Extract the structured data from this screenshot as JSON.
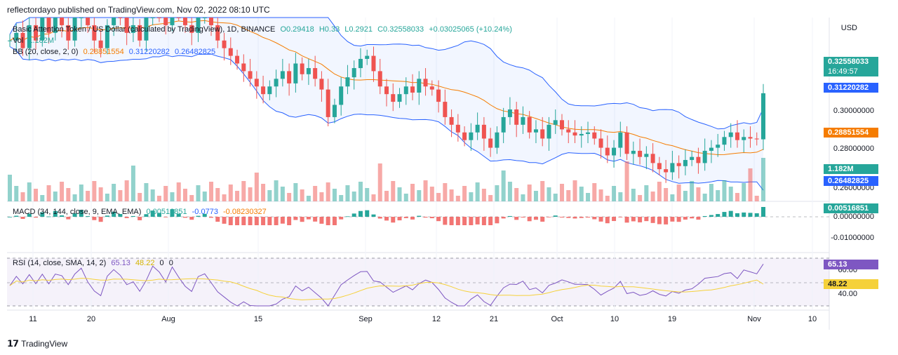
{
  "header": {
    "published": "reflectordayo published on TradingView.com, Nov 02, 2022 08:10 UTC"
  },
  "legend": {
    "symbol": "Basic Attention Token / US Dollar (calculated by TradingView), 1D, BINANCE",
    "o": "O0.29418",
    "h": "H0.33",
    "l": "L0.2921",
    "c": "C0.32558033",
    "chg": "+0.03025065 (+10.24%)",
    "vol_label": "Vol",
    "vol_val": "1.182M",
    "bb_label": "BB (20, close, 2, 0)",
    "bb_basis": "0.28851554",
    "bb_upper": "0.31220282",
    "bb_lower": "0.26482825",
    "macd_label": "MACD (34, 144, close, 9, EMA, EMA)",
    "macd_v1": "0.00516851",
    "macd_v2": "-0.0773",
    "macd_v3": "-0.08230327",
    "rsi_label": "RSI (14, close, SMA, 14, 2)",
    "rsi_v": "65.13",
    "rsi_ma": "48.22",
    "rsi_z1": "0",
    "rsi_z2": "0"
  },
  "axis": {
    "currency": "USD",
    "price_ticks": [
      "0.30000000",
      "0.28000000",
      "0.26000000"
    ],
    "macd_ticks": [
      "0.00000000",
      "-0.01000000"
    ],
    "rsi_ticks": [
      "60.00",
      "40.00"
    ],
    "x_ticks": [
      "11",
      "20",
      "Aug",
      "15",
      "Sep",
      "12",
      "21",
      "Oct",
      "10",
      "19",
      "Nov",
      "10"
    ]
  },
  "tags": {
    "last_price": "0.32558033",
    "countdown": "16:49:57",
    "bb_upper": "0.31220282",
    "bb_basis": "0.28851554",
    "volume": "1.182M",
    "bb_lower": "0.26482825",
    "macd": "0.00516851",
    "rsi": "65.13",
    "rsi_ma": "48.22"
  },
  "footer": {
    "brand": "TradingView"
  },
  "colors": {
    "up": "#26a69a",
    "down": "#ef5350",
    "bb": "#2962ff",
    "basis": "#f57c00",
    "rsi": "#7e57c2",
    "rsi_ma": "#f5d13a"
  },
  "chart_data": {
    "type": "candlestick",
    "title": "Basic Attention Token / US Dollar (calculated by TradingView), 1D, BINANCE",
    "x_ticks": [
      "11",
      "20",
      "Aug",
      "15",
      "Sep",
      "12",
      "21",
      "Oct",
      "10",
      "19",
      "Nov",
      "10"
    ],
    "y_ticks": [
      "0.30000000",
      "0.28000000",
      "0.26000000"
    ],
    "close_series": [
      0.36,
      0.365,
      0.355,
      0.37,
      0.36,
      0.375,
      0.365,
      0.38,
      0.37,
      0.36,
      0.375,
      0.385,
      0.37,
      0.36,
      0.355,
      0.37,
      0.38,
      0.375,
      0.365,
      0.37,
      0.36,
      0.375,
      0.385,
      0.38,
      0.37,
      0.39,
      0.38,
      0.37,
      0.365,
      0.375,
      0.38,
      0.37,
      0.36,
      0.355,
      0.35,
      0.345,
      0.34,
      0.335,
      0.33,
      0.325,
      0.33,
      0.335,
      0.34,
      0.332,
      0.345,
      0.338,
      0.342,
      0.335,
      0.328,
      0.31,
      0.318,
      0.33,
      0.336,
      0.342,
      0.348,
      0.35,
      0.34,
      0.33,
      0.325,
      0.32,
      0.325,
      0.33,
      0.326,
      0.335,
      0.33,
      0.328,
      0.32,
      0.31,
      0.305,
      0.3,
      0.295,
      0.3,
      0.305,
      0.296,
      0.29,
      0.3,
      0.31,
      0.315,
      0.305,
      0.31,
      0.3,
      0.302,
      0.296,
      0.305,
      0.308,
      0.302,
      0.3,
      0.298,
      0.299,
      0.3,
      0.296,
      0.29,
      0.285,
      0.29,
      0.3,
      0.286,
      0.288,
      0.284,
      0.286,
      0.28,
      0.276,
      0.274,
      0.28,
      0.278,
      0.282,
      0.284,
      0.28,
      0.288,
      0.29,
      0.292,
      0.297,
      0.3,
      0.295,
      0.297,
      0.296,
      0.2955,
      0.32558033
    ],
    "bb_upper": 0.31220282,
    "bb_basis": 0.28851554,
    "bb_lower": 0.26482825,
    "volume_last": "1.182M",
    "macd_last": 0.00516851,
    "rsi_last": 65.13,
    "rsi_ma_last": 48.22
  }
}
